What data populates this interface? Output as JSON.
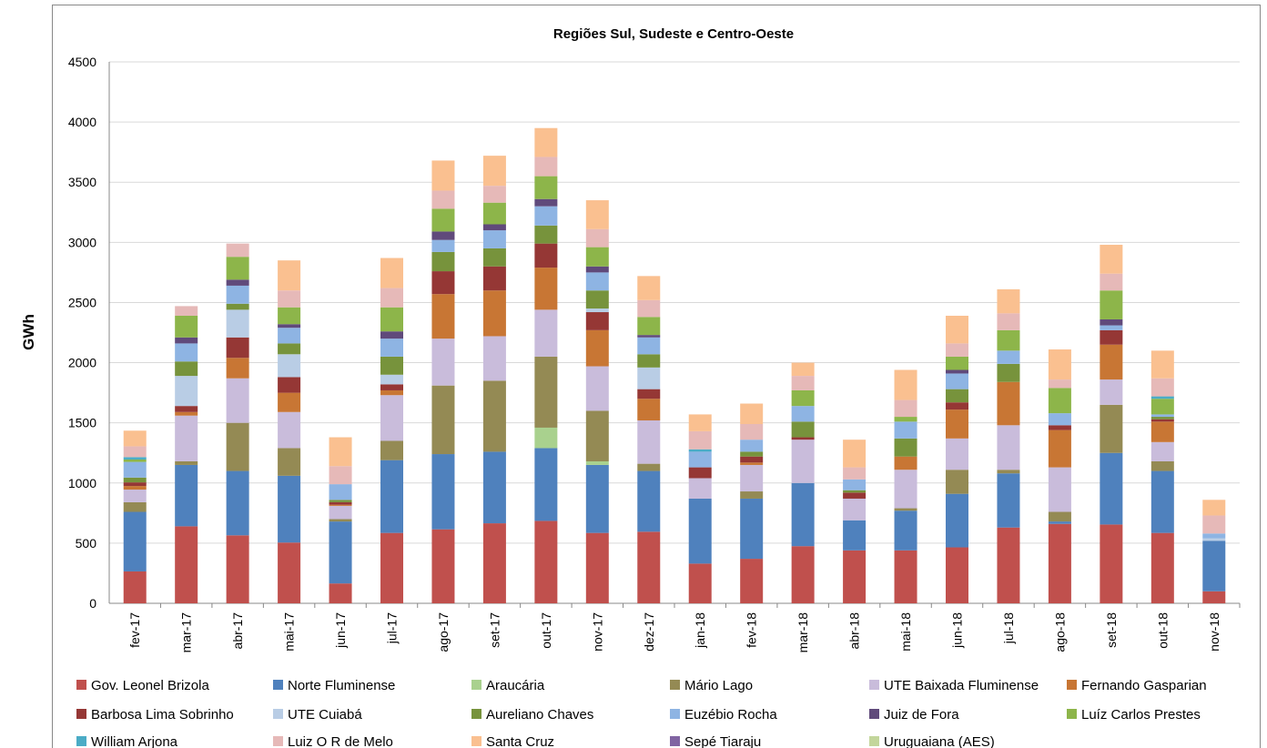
{
  "chart_data": {
    "type": "stacked_bar",
    "title": "Regiões Sul, Sudeste e Centro-Oeste",
    "y_label": "GWh",
    "categories": [
      "fev-17",
      "mar-17",
      "abr-17",
      "mai-17",
      "jun-17",
      "jul-17",
      "ago-17",
      "set-17",
      "out-17",
      "nov-17",
      "dez-17",
      "jan-18",
      "fev-18",
      "mar-18",
      "abr-18",
      "mai-18",
      "jun-18",
      "jul-18",
      "ago-18",
      "set-18",
      "out-18",
      "nov-18"
    ],
    "ylim": [
      0,
      4500
    ],
    "yticks": [
      0,
      500,
      1000,
      1500,
      2000,
      2500,
      3000,
      3500,
      4000,
      4500
    ],
    "grid": true,
    "legend": "bottom",
    "series": [
      {
        "name": "Gov. Leonel Brizola",
        "color": "#c0504d",
        "values": [
          265,
          640,
          565,
          505,
          165,
          585,
          615,
          665,
          685,
          585,
          595,
          330,
          370,
          475,
          440,
          440,
          465,
          630,
          660,
          655,
          585,
          100
        ]
      },
      {
        "name": "Norte Fluminense",
        "color": "#4f81bd",
        "values": [
          495,
          510,
          535,
          555,
          515,
          605,
          625,
          595,
          605,
          565,
          505,
          540,
          500,
          525,
          250,
          330,
          445,
          450,
          20,
          595,
          515,
          420
        ]
      },
      {
        "name": "Araucária",
        "color": "#a9d18e",
        "values": [
          0,
          0,
          0,
          0,
          0,
          0,
          0,
          0,
          170,
          30,
          0,
          0,
          0,
          0,
          0,
          0,
          0,
          0,
          0,
          0,
          0,
          0
        ]
      },
      {
        "name": "Mário Lago",
        "color": "#948a54",
        "values": [
          80,
          30,
          400,
          230,
          20,
          160,
          570,
          590,
          590,
          420,
          60,
          0,
          60,
          0,
          0,
          20,
          200,
          30,
          80,
          400,
          80,
          0
        ]
      },
      {
        "name": "UTE Baixada Fluminense",
        "color": "#c9bcdb",
        "values": [
          105,
          380,
          370,
          300,
          110,
          380,
          390,
          370,
          390,
          370,
          360,
          170,
          220,
          360,
          180,
          320,
          260,
          370,
          370,
          210,
          160,
          0
        ]
      },
      {
        "name": "Fernando Gasparian",
        "color": "#c87634",
        "values": [
          30,
          30,
          170,
          160,
          10,
          40,
          370,
          380,
          350,
          300,
          180,
          0,
          20,
          0,
          0,
          110,
          240,
          360,
          310,
          290,
          170,
          0
        ]
      },
      {
        "name": "Barbosa Lima Sobrinho",
        "color": "#953735",
        "values": [
          30,
          50,
          170,
          130,
          20,
          50,
          190,
          200,
          200,
          150,
          80,
          90,
          50,
          20,
          50,
          0,
          60,
          0,
          40,
          120,
          20,
          0
        ]
      },
      {
        "name": "UTE Cuiabá",
        "color": "#b9cde5",
        "values": [
          0,
          250,
          230,
          190,
          0,
          80,
          0,
          0,
          0,
          30,
          180,
          0,
          0,
          0,
          0,
          0,
          0,
          0,
          0,
          0,
          0,
          20
        ]
      },
      {
        "name": "Aureliano Chaves",
        "color": "#77933c",
        "values": [
          40,
          120,
          50,
          90,
          20,
          150,
          160,
          150,
          150,
          150,
          110,
          0,
          40,
          130,
          20,
          150,
          110,
          150,
          0,
          0,
          20,
          0
        ]
      },
      {
        "name": "Euzébio Rocha",
        "color": "#8eb4e3",
        "values": [
          130,
          150,
          150,
          130,
          130,
          150,
          100,
          150,
          160,
          150,
          140,
          130,
          100,
          130,
          90,
          140,
          130,
          110,
          100,
          40,
          20,
          40
        ]
      },
      {
        "name": "Juiz de Fora",
        "color": "#604a7b",
        "values": [
          0,
          50,
          50,
          30,
          0,
          60,
          70,
          50,
          60,
          50,
          20,
          0,
          0,
          0,
          0,
          0,
          30,
          0,
          0,
          50,
          0,
          0
        ]
      },
      {
        "name": "Luíz Carlos Prestes",
        "color": "#8db54a",
        "values": [
          20,
          180,
          190,
          140,
          0,
          200,
          190,
          180,
          190,
          160,
          150,
          0,
          0,
          130,
          0,
          40,
          110,
          170,
          210,
          240,
          130,
          0
        ]
      },
      {
        "name": "William Arjona",
        "color": "#4bacc6",
        "values": [
          20,
          0,
          0,
          0,
          0,
          0,
          0,
          0,
          0,
          0,
          0,
          20,
          0,
          0,
          0,
          0,
          0,
          0,
          0,
          0,
          20,
          0
        ]
      },
      {
        "name": "Luiz O R de Melo",
        "color": "#e6b9b8",
        "values": [
          90,
          80,
          110,
          140,
          150,
          160,
          150,
          140,
          160,
          150,
          140,
          150,
          130,
          120,
          100,
          140,
          110,
          140,
          70,
          140,
          150,
          150
        ]
      },
      {
        "name": "Santa Cruz",
        "color": "#fac090",
        "values": [
          130,
          0,
          0,
          250,
          240,
          250,
          250,
          250,
          240,
          240,
          200,
          140,
          170,
          110,
          230,
          250,
          230,
          200,
          250,
          240,
          230,
          130
        ]
      },
      {
        "name": "Sepé Tiaraju",
        "color": "#8064a2",
        "values": [
          0,
          0,
          0,
          0,
          0,
          0,
          0,
          0,
          0,
          0,
          0,
          0,
          0,
          0,
          0,
          0,
          0,
          0,
          0,
          0,
          0,
          0
        ]
      },
      {
        "name": "Uruguaiana (AES)",
        "color": "#c3d69b",
        "values": [
          0,
          0,
          0,
          0,
          0,
          0,
          0,
          0,
          0,
          0,
          0,
          0,
          0,
          0,
          0,
          0,
          0,
          0,
          0,
          0,
          0,
          0
        ]
      }
    ]
  }
}
